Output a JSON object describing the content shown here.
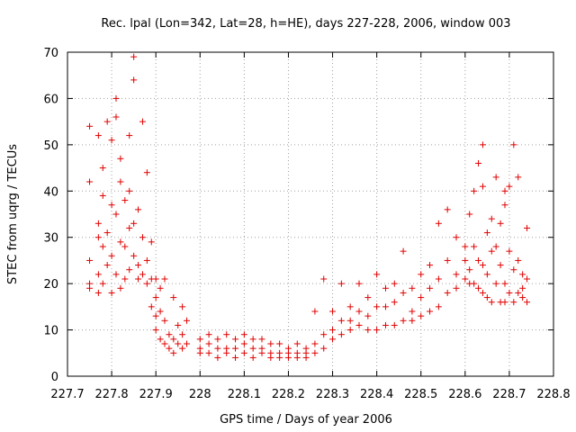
{
  "chart_data": {
    "type": "scatter",
    "title": "Rec. lpal (Lon=342, Lat=28, h=HE), days 227-228, 2006, window 003",
    "xlabel": "GPS time / Days of year 2006",
    "ylabel": "STEC from uqrg / TECUs",
    "xlim": [
      227.7,
      228.8
    ],
    "ylim": [
      0,
      70
    ],
    "xticks": [
      "227.7",
      "227.8",
      "227.9",
      "228",
      "228.1",
      "228.2",
      "228.3",
      "228.4",
      "228.5",
      "228.6",
      "228.7",
      "228.8"
    ],
    "yticks": [
      "0",
      "10",
      "20",
      "30",
      "40",
      "50",
      "60",
      "70"
    ],
    "grid": true,
    "marker": "+",
    "color": "#e00000",
    "series": [
      {
        "points": [
          [
            227.75,
            54
          ],
          [
            227.75,
            42
          ],
          [
            227.75,
            25
          ],
          [
            227.75,
            20
          ],
          [
            227.75,
            19
          ],
          [
            227.77,
            52
          ],
          [
            227.77,
            33
          ],
          [
            227.77,
            30
          ],
          [
            227.77,
            22
          ],
          [
            227.77,
            18
          ],
          [
            227.78,
            45
          ],
          [
            227.78,
            39
          ],
          [
            227.78,
            28
          ],
          [
            227.78,
            20
          ],
          [
            227.79,
            55
          ],
          [
            227.79,
            31
          ],
          [
            227.79,
            24
          ],
          [
            227.8,
            51
          ],
          [
            227.8,
            37
          ],
          [
            227.8,
            26
          ],
          [
            227.8,
            18
          ],
          [
            227.81,
            60
          ],
          [
            227.81,
            56
          ],
          [
            227.81,
            35
          ],
          [
            227.81,
            22
          ],
          [
            227.82,
            47
          ],
          [
            227.82,
            42
          ],
          [
            227.82,
            29
          ],
          [
            227.82,
            19
          ],
          [
            227.83,
            38
          ],
          [
            227.83,
            28
          ],
          [
            227.83,
            21
          ],
          [
            227.84,
            52
          ],
          [
            227.84,
            40
          ],
          [
            227.84,
            32
          ],
          [
            227.84,
            23
          ],
          [
            227.85,
            69
          ],
          [
            227.85,
            64
          ],
          [
            227.85,
            33
          ],
          [
            227.85,
            26
          ],
          [
            227.86,
            36
          ],
          [
            227.86,
            24
          ],
          [
            227.86,
            21
          ],
          [
            227.87,
            55
          ],
          [
            227.87,
            30
          ],
          [
            227.87,
            22
          ],
          [
            227.88,
            44
          ],
          [
            227.88,
            25
          ],
          [
            227.88,
            20
          ],
          [
            227.89,
            29
          ],
          [
            227.89,
            21
          ],
          [
            227.89,
            15
          ],
          [
            227.9,
            21
          ],
          [
            227.9,
            17
          ],
          [
            227.9,
            13
          ],
          [
            227.9,
            10
          ],
          [
            227.91,
            19
          ],
          [
            227.91,
            14
          ],
          [
            227.91,
            8
          ],
          [
            227.92,
            21
          ],
          [
            227.92,
            12
          ],
          [
            227.92,
            7
          ],
          [
            227.93,
            9
          ],
          [
            227.93,
            6
          ],
          [
            227.94,
            17
          ],
          [
            227.94,
            8
          ],
          [
            227.94,
            5
          ],
          [
            227.95,
            11
          ],
          [
            227.95,
            7
          ],
          [
            227.96,
            15
          ],
          [
            227.96,
            9
          ],
          [
            227.96,
            6
          ],
          [
            227.97,
            12
          ],
          [
            227.97,
            7
          ],
          [
            228.0,
            8
          ],
          [
            228.0,
            6
          ],
          [
            228.0,
            5
          ],
          [
            228.02,
            9
          ],
          [
            228.02,
            7
          ],
          [
            228.02,
            5
          ],
          [
            228.04,
            8
          ],
          [
            228.04,
            6
          ],
          [
            228.04,
            4
          ],
          [
            228.06,
            9
          ],
          [
            228.06,
            6
          ],
          [
            228.06,
            5
          ],
          [
            228.08,
            8
          ],
          [
            228.08,
            6
          ],
          [
            228.08,
            4
          ],
          [
            228.1,
            9
          ],
          [
            228.1,
            7
          ],
          [
            228.1,
            5
          ],
          [
            228.12,
            8
          ],
          [
            228.12,
            6
          ],
          [
            228.12,
            4
          ],
          [
            228.14,
            8
          ],
          [
            228.14,
            6
          ],
          [
            228.14,
            5
          ],
          [
            228.16,
            7
          ],
          [
            228.16,
            5
          ],
          [
            228.16,
            4
          ],
          [
            228.18,
            7
          ],
          [
            228.18,
            5
          ],
          [
            228.18,
            4
          ],
          [
            228.2,
            6
          ],
          [
            228.2,
            5
          ],
          [
            228.2,
            4
          ],
          [
            228.22,
            7
          ],
          [
            228.22,
            5
          ],
          [
            228.22,
            4
          ],
          [
            228.24,
            6
          ],
          [
            228.24,
            5
          ],
          [
            228.24,
            4
          ],
          [
            228.26,
            14
          ],
          [
            228.26,
            7
          ],
          [
            228.26,
            5
          ],
          [
            228.28,
            21
          ],
          [
            228.28,
            9
          ],
          [
            228.28,
            6
          ],
          [
            228.3,
            14
          ],
          [
            228.3,
            10
          ],
          [
            228.3,
            8
          ],
          [
            228.32,
            20
          ],
          [
            228.32,
            12
          ],
          [
            228.32,
            9
          ],
          [
            228.34,
            15
          ],
          [
            228.34,
            12
          ],
          [
            228.34,
            10
          ],
          [
            228.36,
            20
          ],
          [
            228.36,
            14
          ],
          [
            228.36,
            11
          ],
          [
            228.38,
            17
          ],
          [
            228.38,
            13
          ],
          [
            228.38,
            10
          ],
          [
            228.4,
            22
          ],
          [
            228.4,
            15
          ],
          [
            228.4,
            10
          ],
          [
            228.42,
            19
          ],
          [
            228.42,
            15
          ],
          [
            228.42,
            11
          ],
          [
            228.44,
            20
          ],
          [
            228.44,
            16
          ],
          [
            228.44,
            11
          ],
          [
            228.46,
            27
          ],
          [
            228.46,
            18
          ],
          [
            228.46,
            12
          ],
          [
            228.48,
            19
          ],
          [
            228.48,
            14
          ],
          [
            228.48,
            12
          ],
          [
            228.5,
            22
          ],
          [
            228.5,
            17
          ],
          [
            228.5,
            13
          ],
          [
            228.52,
            24
          ],
          [
            228.52,
            19
          ],
          [
            228.52,
            14
          ],
          [
            228.54,
            33
          ],
          [
            228.54,
            21
          ],
          [
            228.54,
            15
          ],
          [
            228.56,
            36
          ],
          [
            228.56,
            25
          ],
          [
            228.56,
            18
          ],
          [
            228.58,
            30
          ],
          [
            228.58,
            22
          ],
          [
            228.58,
            19
          ],
          [
            228.6,
            28
          ],
          [
            228.6,
            25
          ],
          [
            228.6,
            21
          ],
          [
            228.61,
            35
          ],
          [
            228.61,
            23
          ],
          [
            228.61,
            20
          ],
          [
            228.62,
            40
          ],
          [
            228.62,
            28
          ],
          [
            228.62,
            20
          ],
          [
            228.63,
            46
          ],
          [
            228.63,
            25
          ],
          [
            228.63,
            19
          ],
          [
            228.64,
            50
          ],
          [
            228.64,
            41
          ],
          [
            228.64,
            24
          ],
          [
            228.64,
            18
          ],
          [
            228.65,
            31
          ],
          [
            228.65,
            22
          ],
          [
            228.65,
            17
          ],
          [
            228.66,
            34
          ],
          [
            228.66,
            27
          ],
          [
            228.66,
            16
          ],
          [
            228.67,
            43
          ],
          [
            228.67,
            28
          ],
          [
            228.67,
            20
          ],
          [
            228.68,
            33
          ],
          [
            228.68,
            24
          ],
          [
            228.68,
            16
          ],
          [
            228.69,
            40
          ],
          [
            228.69,
            37
          ],
          [
            228.69,
            20
          ],
          [
            228.69,
            16
          ],
          [
            228.7,
            41
          ],
          [
            228.7,
            27
          ],
          [
            228.7,
            18
          ],
          [
            228.71,
            50
          ],
          [
            228.71,
            23
          ],
          [
            228.71,
            16
          ],
          [
            228.72,
            43
          ],
          [
            228.72,
            25
          ],
          [
            228.72,
            18
          ],
          [
            228.73,
            22
          ],
          [
            228.73,
            19
          ],
          [
            228.73,
            17
          ],
          [
            228.74,
            32
          ],
          [
            228.74,
            21
          ],
          [
            228.74,
            16
          ]
        ]
      }
    ]
  }
}
